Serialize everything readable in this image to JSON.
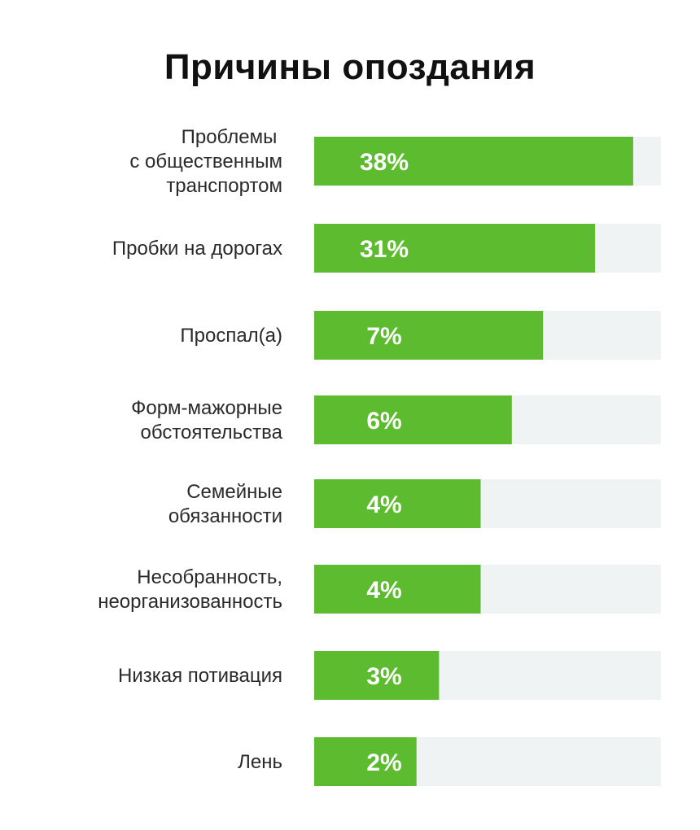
{
  "chart_data": {
    "type": "bar",
    "orientation": "horizontal",
    "title": "Причины опоздания",
    "categories": [
      "Проблемы \nс общественным\nтранспортом",
      "Пробки на дорогах",
      "Проспал(а)",
      "Форм-мажорные\nобстоятельства",
      "Семейные\nобязанности",
      "Несобранность,\nнеорганизованность",
      "Низкая потивация",
      "Лень"
    ],
    "values": [
      38,
      31,
      7,
      6,
      4,
      4,
      3,
      2
    ],
    "value_labels": [
      "38%",
      "31%",
      "7%",
      "6%",
      "4%",
      "4%",
      "3%",
      "2%"
    ],
    "bar_fill": [
      0.92,
      0.81,
      0.66,
      0.57,
      0.48,
      0.48,
      0.36,
      0.295
    ],
    "grid": false,
    "legend": "none",
    "colors": {
      "bar": "#5dbb2f",
      "track": "#f0f3f4",
      "title": "#111111",
      "label": "#2a2a2a",
      "value_text": "#ffffff"
    }
  }
}
